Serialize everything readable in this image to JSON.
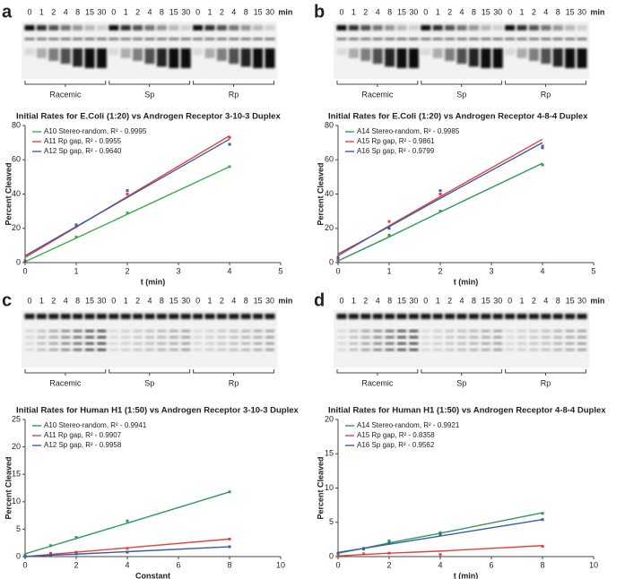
{
  "gels": [
    {
      "letter": "a",
      "lanes": [
        "0",
        "1",
        "2",
        "4",
        "8",
        "15",
        "30",
        "0",
        "1",
        "2",
        "4",
        "8",
        "15",
        "30",
        "0",
        "1",
        "2",
        "4",
        "8",
        "15",
        "30"
      ],
      "unit": "min",
      "groups": [
        "Racemic",
        "Sp",
        "Rp"
      ]
    },
    {
      "letter": "b",
      "lanes": [
        "0",
        "1",
        "2",
        "4",
        "8",
        "15",
        "30",
        "0",
        "1",
        "2",
        "4",
        "8",
        "15",
        "30",
        "0",
        "1",
        "2",
        "4",
        "8",
        "15",
        "30"
      ],
      "unit": "min",
      "groups": [
        "Racemic",
        "Sp",
        "Rp"
      ]
    },
    {
      "letter": "c",
      "lanes": [
        "0",
        "1",
        "2",
        "4",
        "8",
        "15",
        "30",
        "0",
        "1",
        "2",
        "4",
        "8",
        "15",
        "30",
        "0",
        "1",
        "2",
        "4",
        "8",
        "15",
        "30"
      ],
      "unit": "min",
      "groups": [
        "Racemic",
        "Sp",
        "Rp"
      ]
    },
    {
      "letter": "d",
      "lanes": [
        "0",
        "1",
        "2",
        "4",
        "8",
        "15",
        "30",
        "0",
        "1",
        "2",
        "4",
        "8",
        "15",
        "30",
        "0",
        "1",
        "2",
        "4",
        "8",
        "15",
        "30"
      ],
      "unit": "min",
      "groups": [
        "Racemic",
        "Sp",
        "Rp"
      ]
    }
  ],
  "chart_data": [
    {
      "type": "scatter",
      "title": "Initial Rates for E.Coli (1:20) vs Androgen Receptor 3-10-3 Duplex",
      "xlabel": "t (min)",
      "ylabel": "Percent Cleaved",
      "x": [
        0,
        1,
        2,
        4
      ],
      "xlim": [
        0,
        5
      ],
      "xticks": [
        0,
        1,
        2,
        3,
        4,
        5
      ],
      "ylim": [
        0,
        80
      ],
      "yticks": [
        0,
        20,
        40,
        60,
        80
      ],
      "legend": "upper left",
      "series": [
        {
          "name": "A10 Stereo-random, R² - 0.9995",
          "color": "#3fae49",
          "values": [
            1,
            15,
            29,
            56
          ],
          "fit": [
            0.5,
            14.3,
            28.2,
            56
          ]
        },
        {
          "name": "A11 Rp gap, R² - 0.9955",
          "color": "#e8413c",
          "values": [
            1,
            21,
            40,
            73
          ],
          "fit": [
            3,
            20.7,
            38.5,
            74
          ]
        },
        {
          "name": "A12 Sp gap, R² - 0.9640",
          "color": "#3b5ba8",
          "values": [
            1,
            22,
            42,
            69
          ],
          "fit": [
            4,
            21,
            38,
            72
          ]
        }
      ]
    },
    {
      "type": "scatter",
      "title": "Initial Rates for E.Coli (1:20) vs Androgen Receptor 4-8-4 Duplex",
      "xlabel": "t (min)",
      "ylabel": "Percent Cleaved",
      "x": [
        0,
        1,
        2,
        4
      ],
      "xlim": [
        0,
        5
      ],
      "xticks": [
        0,
        1,
        2,
        3,
        4,
        5
      ],
      "ylim": [
        0,
        80
      ],
      "yticks": [
        0,
        20,
        40,
        60,
        80
      ],
      "legend": "upper left",
      "series": [
        {
          "name": "A14 Stereo-random, R² - 0.9985",
          "color": "#2e9a5a",
          "values": [
            1,
            16,
            30,
            57
          ],
          "fit": [
            1,
            15,
            29.5,
            58
          ]
        },
        {
          "name": "A15 Rp gap, R² - 0.9861",
          "color": "#e8413c",
          "values": [
            2,
            24,
            40,
            68
          ],
          "fit": [
            4,
            21.5,
            38.5,
            72
          ]
        },
        {
          "name": "A16 Sp gap, R² - 0.9799",
          "color": "#3b5ba8",
          "values": [
            3,
            20,
            42,
            67
          ],
          "fit": [
            5,
            21,
            37.5,
            70
          ]
        }
      ]
    },
    {
      "type": "scatter",
      "title": "Initial Rates for Human H1 (1:50) vs Androgen Receptor 3-10-3 Duplex",
      "xlabel": "Constant",
      "ylabel": "Percent Cleaved",
      "x": [
        0,
        1,
        2,
        4,
        8
      ],
      "xlim": [
        0,
        10
      ],
      "xticks": [
        0,
        2,
        4,
        6,
        8,
        10
      ],
      "ylim": [
        0,
        25
      ],
      "yticks": [
        0,
        5,
        10,
        15,
        20,
        25
      ],
      "legend": "upper left",
      "series": [
        {
          "name": "A10 Stereo-random, R² - 0.9941",
          "color": "#2e9a5a",
          "values": [
            0.3,
            2,
            3.5,
            6.5,
            11.8
          ],
          "fit": [
            0.5,
            1.9,
            3.3,
            6.1,
            11.8
          ]
        },
        {
          "name": "A11 Rp gap, R² - 0.9907",
          "color": "#e8413c",
          "values": [
            0,
            0.6,
            0.8,
            1.5,
            3.2
          ],
          "fit": [
            0,
            0.4,
            0.8,
            1.6,
            3.2
          ]
        },
        {
          "name": "A12 Sp gap, R² - 0.9958",
          "color": "#3b5ba8",
          "values": [
            0,
            0.3,
            0.5,
            0.8,
            1.8
          ],
          "fit": [
            0,
            0.25,
            0.45,
            0.9,
            1.8
          ]
        }
      ]
    },
    {
      "type": "scatter",
      "title": "Initial Rates for Human H1 (1:50) vs Androgen Receptor 4-8-4 Duplex",
      "xlabel": "t (min)",
      "ylabel": "Percent Cleaved",
      "x": [
        0,
        1,
        2,
        4,
        8
      ],
      "xlim": [
        0,
        10
      ],
      "xticks": [
        0,
        2,
        4,
        6,
        8,
        10
      ],
      "ylim": [
        0,
        20
      ],
      "yticks": [
        0,
        5,
        10,
        15,
        20
      ],
      "legend": "upper left",
      "series": [
        {
          "name": "A14 Stereo-random, R² - 0.9921",
          "color": "#2e9a5a",
          "values": [
            0.3,
            1.2,
            2.3,
            3.5,
            6.3
          ],
          "fit": [
            0.5,
            1.2,
            2,
            3.4,
            6.4
          ]
        },
        {
          "name": "A15 Rp gap, R² - 0.8358",
          "color": "#e8413c",
          "values": [
            0,
            0.4,
            0.5,
            0.3,
            1.5
          ],
          "fit": [
            0.1,
            0.3,
            0.5,
            0.8,
            1.6
          ]
        },
        {
          "name": "A16 Sp gap, R² - 0.9562",
          "color": "#3b5ba8",
          "values": [
            0.5,
            1.1,
            2,
            3.2,
            5.4
          ],
          "fit": [
            0.6,
            1.2,
            1.8,
            3.0,
            5.4
          ]
        }
      ]
    }
  ]
}
